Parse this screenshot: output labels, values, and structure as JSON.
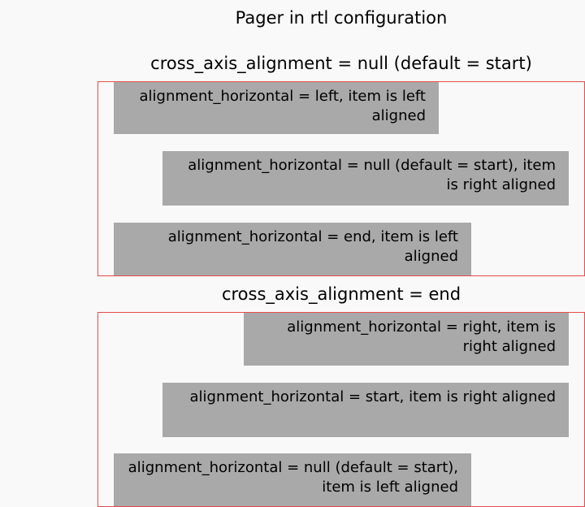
{
  "page": {
    "title": "Pager in rtl configuration"
  },
  "sections": [
    {
      "heading": "cross_axis_alignment = null (default = start)",
      "items": [
        {
          "label": "alignment_horizontal = left, item is left aligned"
        },
        {
          "label": "alignment_horizontal = null (default = start), item is right aligned"
        },
        {
          "label": "alignment_horizontal = end, item is left aligned"
        }
      ]
    },
    {
      "heading": "cross_axis_alignment = end",
      "items": [
        {
          "label": "alignment_horizontal = right, item is right aligned"
        },
        {
          "label": "alignment_horizontal = start, item is right aligned"
        },
        {
          "label": "alignment_horizontal = null (default = start), item is left aligned"
        }
      ]
    }
  ],
  "colors": {
    "background": "#f9f9f9",
    "item": "#a9a9a9",
    "frame_border": "#e74c4c"
  }
}
